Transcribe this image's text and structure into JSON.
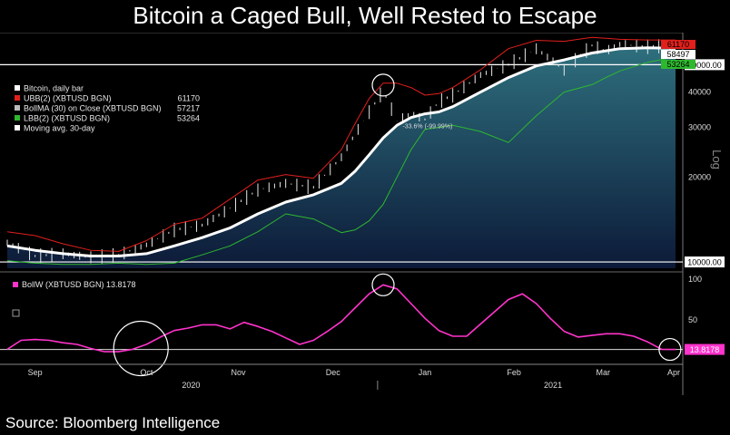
{
  "title": "Bitcoin a Caged Bull, Well Rested to Escape",
  "source": "Source: Bloomberg Intelligence",
  "colors": {
    "background": "#000000",
    "upper_band": "#e0201c",
    "moving_avg": "#ffffff",
    "lower_band": "#2eb82e",
    "area_fill_top": "#2e6f7d",
    "area_fill_bottom": "#0c1a38",
    "bandwidth": "#ff33cc"
  },
  "chart_data": [
    {
      "type": "line",
      "panel": "price",
      "yscale": "log",
      "ylim": [
        9500,
        64000
      ],
      "ylabel": "Log",
      "y_ticks": [
        40000,
        30000,
        20000
      ],
      "x_ticks": [
        "Sep",
        "Oct",
        "Nov",
        "Dec",
        "Jan",
        "Feb",
        "Mar",
        "Apr"
      ],
      "x_years": [
        "2020",
        "2021"
      ],
      "reference_lines": [
        {
          "value": 50000,
          "label": "50000.00"
        },
        {
          "value": 10000,
          "label": "10000.00"
        }
      ],
      "legend": [
        {
          "label": "Bitcoin, daily bar",
          "value": "",
          "color": "#ffffff"
        },
        {
          "label": "UBB(2) (XBTUSD BGN)",
          "value": "61170",
          "color": "#e0201c"
        },
        {
          "label": "BollMA (30)  on Close (XBTUSD BGN)",
          "value": "57217",
          "color": "#bbbbbb"
        },
        {
          "label": "LBB(2) (XBTUSD BGN)",
          "value": "53264",
          "color": "#2eb82e"
        },
        {
          "label": "Moving avg. 30-day",
          "value": "",
          "color": "#ffffff"
        }
      ],
      "last_value_labels": [
        {
          "text": "61170",
          "color": "#e0201c"
        },
        {
          "text": "58497",
          "color": "#ffffff"
        },
        {
          "text": "53264",
          "color": "#2eb82e"
        }
      ],
      "annotation": "-33.6% (-99.99%)",
      "x": [
        0,
        10,
        20,
        30,
        40,
        50,
        60,
        70,
        80,
        90,
        100,
        110,
        120,
        125,
        130,
        135,
        140,
        145,
        150,
        155,
        160,
        170,
        180,
        190,
        200,
        210,
        215,
        220,
        230,
        240
      ],
      "series": [
        {
          "name": "Bitcoin, daily bar",
          "values": [
            11700,
            10500,
            10700,
            10400,
            10600,
            11500,
            13000,
            13500,
            15500,
            18000,
            19000,
            18400,
            23500,
            28500,
            34000,
            40500,
            31500,
            33500,
            32000,
            37000,
            39000,
            46000,
            50000,
            57000,
            48000,
            58500,
            56000,
            59000,
            58000,
            58500
          ]
        },
        {
          "name": "UBB(2) (XBTUSD BGN)",
          "values": [
            12800,
            12400,
            11600,
            11000,
            10900,
            11900,
            13600,
            14300,
            16700,
            19500,
            20400,
            19800,
            25000,
            31000,
            38000,
            43000,
            43000,
            41500,
            39000,
            39500,
            41500,
            48000,
            57000,
            61000,
            60500,
            62500,
            62000,
            61500,
            61200,
            61170
          ]
        },
        {
          "name": "BollMA (30)  on Close (XBTUSD BGN)",
          "values": [
            11400,
            11000,
            10700,
            10500,
            10500,
            10700,
            11400,
            12200,
            13200,
            14800,
            16300,
            17300,
            19000,
            21000,
            24000,
            27500,
            30500,
            32500,
            33500,
            34000,
            35500,
            40000,
            45000,
            49500,
            52000,
            55000,
            56000,
            57000,
            57400,
            57217
          ]
        },
        {
          "name": "LBB(2) (XBTUSD BGN)",
          "values": [
            10100,
            9900,
            9800,
            9800,
            9900,
            9800,
            9900,
            10600,
            11400,
            12800,
            14800,
            14200,
            12700,
            13000,
            14000,
            16000,
            20000,
            25000,
            29500,
            30000,
            30500,
            29000,
            26500,
            33000,
            40000,
            42500,
            45000,
            47500,
            51000,
            53264
          ]
        }
      ]
    },
    {
      "type": "line",
      "panel": "bandwidth",
      "ylim": [
        0,
        100
      ],
      "y_ticks": [
        100,
        50
      ],
      "legend": [
        {
          "label": "BollW (XBTUSD BGN) 13.8178",
          "color": "#ff33cc"
        }
      ],
      "last_value_label": "13.8178",
      "x": [
        0,
        5,
        10,
        15,
        20,
        25,
        30,
        35,
        40,
        45,
        50,
        55,
        60,
        65,
        70,
        75,
        80,
        85,
        90,
        95,
        100,
        105,
        110,
        115,
        120,
        125,
        130,
        135,
        140,
        145,
        150,
        155,
        160,
        165,
        170,
        175,
        180,
        185,
        190,
        195,
        200,
        205,
        210,
        215,
        220,
        225,
        230,
        235,
        240
      ],
      "series": [
        {
          "name": "BollW (XBTUSD BGN)",
          "values": [
            14,
            25,
            26,
            25,
            22,
            20,
            15,
            11,
            11,
            14,
            20,
            29,
            37,
            40,
            44,
            44,
            39,
            47,
            42,
            36,
            28,
            20,
            25,
            36,
            48,
            65,
            82,
            93,
            88,
            70,
            52,
            37,
            30,
            30,
            45,
            60,
            75,
            82,
            70,
            52,
            36,
            29,
            31,
            33,
            33,
            30,
            23,
            14,
            13.8178
          ]
        }
      ]
    }
  ]
}
